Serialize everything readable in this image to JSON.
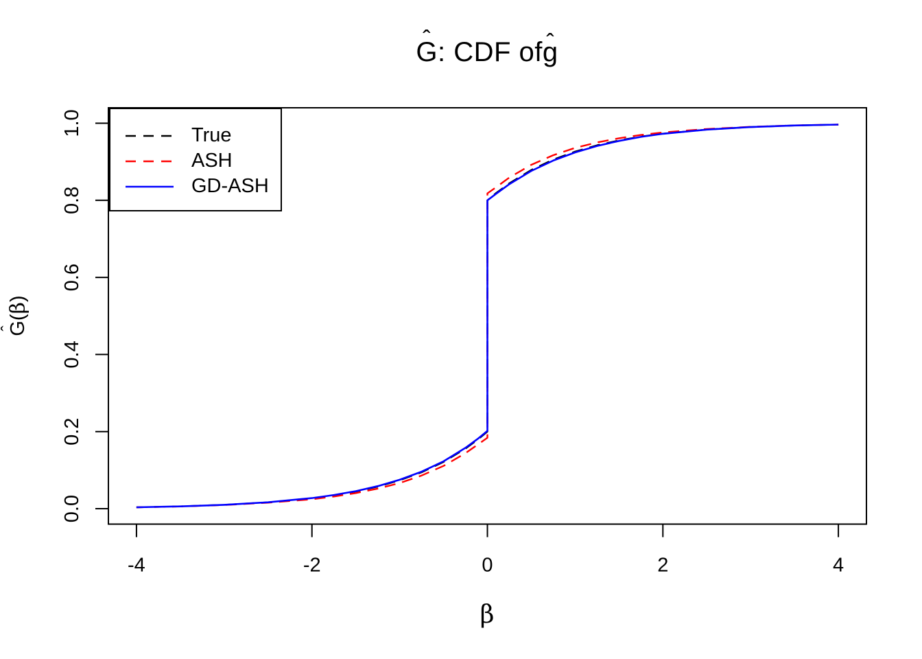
{
  "title_parts": {
    "hat": "ˆ",
    "G": "G",
    "middle": ": CDF of ",
    "g": "g"
  },
  "ylabel_parts": {
    "hat": "ˆ",
    "G": "G",
    "open": "(",
    "beta": "β",
    "close": ")"
  },
  "chart_data": {
    "type": "line",
    "title": "Ĝ: CDF of ĝ",
    "xlabel": "β",
    "ylabel": "Ĝ(β)",
    "xlim": [
      -4,
      4
    ],
    "ylim": [
      0,
      1
    ],
    "axis_padding_frac": 0.04,
    "grid": false,
    "x_ticks": [
      -4,
      -2,
      0,
      2,
      4
    ],
    "x_tick_labels": [
      "-4",
      "-2",
      "0",
      "2",
      "4"
    ],
    "y_ticks": [
      0,
      0.2,
      0.4,
      0.6,
      0.8,
      1
    ],
    "y_tick_labels": [
      "0.0",
      "0.2",
      "0.4",
      "0.6",
      "0.8",
      "1.0"
    ],
    "legend": {
      "position": "topleft",
      "entries": [
        "True",
        "ASH",
        "GD-ASH"
      ]
    },
    "x": [
      -4,
      -3.5,
      -3,
      -2.5,
      -2,
      -1.75,
      -1.5,
      -1.25,
      -1,
      -0.75,
      -0.5,
      -0.25,
      -0.1,
      0,
      0,
      0.1,
      0.25,
      0.5,
      0.75,
      1,
      1.25,
      1.5,
      1.75,
      2,
      2.5,
      3,
      3.5,
      4
    ],
    "series": [
      {
        "name": "True",
        "color": "#000000",
        "style": "dashed",
        "values": [
          0.0037,
          0.006,
          0.01,
          0.0164,
          0.0271,
          0.0348,
          0.0446,
          0.0573,
          0.0736,
          0.0945,
          0.1213,
          0.1558,
          0.181,
          0.2,
          0.8,
          0.819,
          0.8442,
          0.8787,
          0.9055,
          0.9264,
          0.9427,
          0.9554,
          0.9652,
          0.9729,
          0.9836,
          0.99,
          0.994,
          0.9963
        ]
      },
      {
        "name": "ASH",
        "color": "#FF0000",
        "style": "dashed",
        "values": [
          0.0037,
          0.0058,
          0.0095,
          0.0155,
          0.0245,
          0.0315,
          0.0405,
          0.052,
          0.0665,
          0.086,
          0.111,
          0.144,
          0.168,
          0.184,
          0.818,
          0.834,
          0.859,
          0.892,
          0.917,
          0.936,
          0.95,
          0.961,
          0.9695,
          0.976,
          0.985,
          0.9907,
          0.9943,
          0.9964
        ]
      },
      {
        "name": "GD-ASH",
        "color": "#0000FF",
        "style": "solid",
        "values": [
          0.0037,
          0.006,
          0.01,
          0.0166,
          0.0275,
          0.0355,
          0.0455,
          0.0585,
          0.075,
          0.096,
          0.123,
          0.1578,
          0.183,
          0.202,
          0.8,
          0.817,
          0.842,
          0.8762,
          0.903,
          0.9242,
          0.941,
          0.954,
          0.9645,
          0.9725,
          0.9834,
          0.9899,
          0.994,
          0.9963
        ]
      }
    ],
    "jump": {
      "x": 0,
      "from": 0.2,
      "to": 0.8
    }
  }
}
